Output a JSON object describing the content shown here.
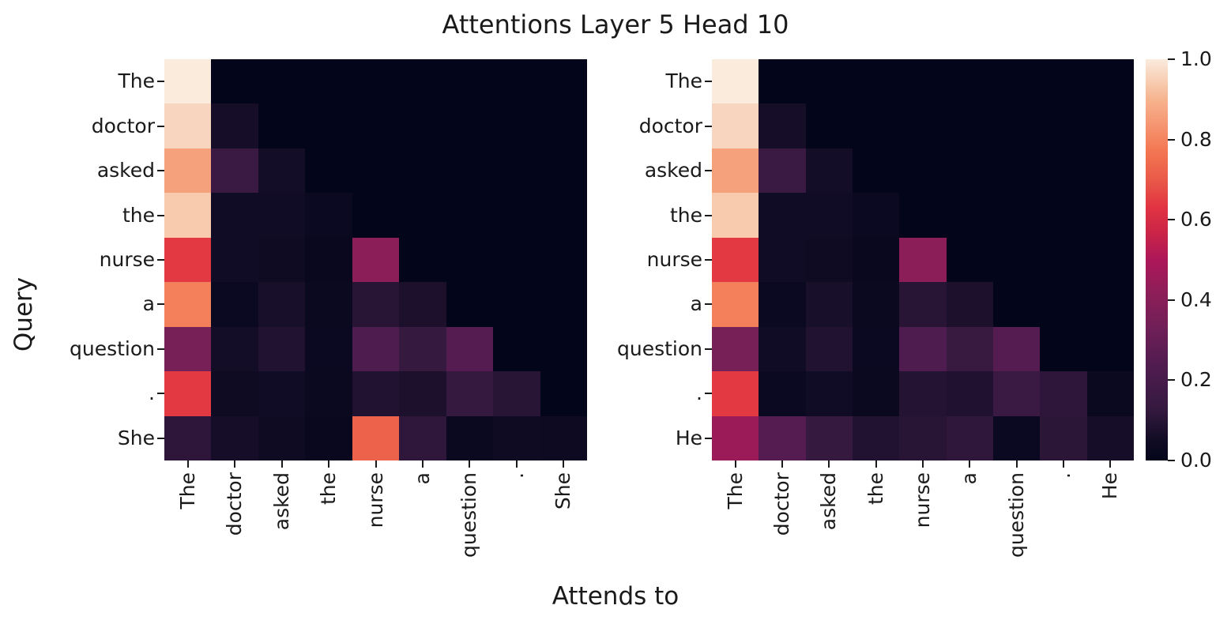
{
  "figure": {
    "title": "Attentions Layer 5 Head 10",
    "xlabel": "Attends to",
    "ylabel": "Query"
  },
  "chart_data": {
    "type": "heatmap",
    "title": "Attentions Layer 5 Head 10",
    "xlabel": "Attends to",
    "ylabel": "Query",
    "vmin": 0.0,
    "vmax": 1.0,
    "grid": false,
    "colormap": "rocket",
    "colormap_stops": [
      [
        0.0,
        "#03051a"
      ],
      [
        0.05,
        "#110c25"
      ],
      [
        0.125,
        "#34193e"
      ],
      [
        0.2,
        "#461b4a"
      ],
      [
        0.25,
        "#541c50"
      ],
      [
        0.33,
        "#701f57"
      ],
      [
        0.42,
        "#8e1e58"
      ],
      [
        0.5,
        "#ad1759"
      ],
      [
        0.565,
        "#c92447"
      ],
      [
        0.63,
        "#e13342"
      ],
      [
        0.7,
        "#ea5a49"
      ],
      [
        0.77,
        "#f37651"
      ],
      [
        0.9,
        "#f6b48f"
      ],
      [
        1.0,
        "#faebdd"
      ]
    ],
    "colorbar": {
      "position": "right",
      "tick_labels": [
        "1.0",
        "0.8",
        "0.6",
        "0.4",
        "0.2",
        "0.0"
      ],
      "tick_values": [
        1.0,
        0.8,
        0.6,
        0.4,
        0.2,
        0.0
      ]
    },
    "x_tick_rotation": 90,
    "subplots": [
      {
        "name": "she-sentence",
        "x_tokens": [
          "The",
          "doctor",
          "asked",
          "the",
          "nurse",
          "a",
          "question",
          ".",
          "She"
        ],
        "y_tokens": [
          "The",
          "doctor",
          "asked",
          "the",
          "nurse",
          "a",
          "question",
          ".",
          "She"
        ],
        "values": [
          [
            1.0,
            0.0,
            0.0,
            0.0,
            0.0,
            0.0,
            0.0,
            0.0,
            0.0
          ],
          [
            0.96,
            0.06,
            0.0,
            0.0,
            0.0,
            0.0,
            0.0,
            0.0,
            0.0
          ],
          [
            0.86,
            0.15,
            0.055,
            0.0,
            0.0,
            0.0,
            0.0,
            0.0,
            0.0
          ],
          [
            0.94,
            0.05,
            0.05,
            0.03,
            0.0,
            0.0,
            0.0,
            0.0,
            0.0
          ],
          [
            0.64,
            0.05,
            0.04,
            0.02,
            0.41,
            0.0,
            0.0,
            0.0,
            0.0
          ],
          [
            0.79,
            0.03,
            0.065,
            0.025,
            0.1,
            0.075,
            0.0,
            0.0,
            0.0
          ],
          [
            0.35,
            0.055,
            0.085,
            0.03,
            0.23,
            0.13,
            0.25,
            0.0,
            0.0
          ],
          [
            0.64,
            0.04,
            0.05,
            0.025,
            0.085,
            0.075,
            0.13,
            0.1,
            0.0
          ],
          [
            0.11,
            0.06,
            0.04,
            0.02,
            0.72,
            0.115,
            0.025,
            0.04,
            0.035
          ]
        ]
      },
      {
        "name": "he-sentence",
        "x_tokens": [
          "The",
          "doctor",
          "asked",
          "the",
          "nurse",
          "a",
          "question",
          ".",
          "He"
        ],
        "y_tokens": [
          "The",
          "doctor",
          "asked",
          "the",
          "nurse",
          "a",
          "question",
          ".",
          "He"
        ],
        "values": [
          [
            1.0,
            0.0,
            0.0,
            0.0,
            0.0,
            0.0,
            0.0,
            0.0,
            0.0
          ],
          [
            0.96,
            0.06,
            0.0,
            0.0,
            0.0,
            0.0,
            0.0,
            0.0,
            0.0
          ],
          [
            0.86,
            0.15,
            0.055,
            0.0,
            0.0,
            0.0,
            0.0,
            0.0,
            0.0
          ],
          [
            0.94,
            0.05,
            0.05,
            0.03,
            0.0,
            0.0,
            0.0,
            0.0,
            0.0
          ],
          [
            0.64,
            0.05,
            0.04,
            0.02,
            0.41,
            0.0,
            0.0,
            0.0,
            0.0
          ],
          [
            0.79,
            0.03,
            0.065,
            0.025,
            0.1,
            0.075,
            0.0,
            0.0,
            0.0
          ],
          [
            0.35,
            0.05,
            0.085,
            0.03,
            0.23,
            0.14,
            0.25,
            0.0,
            0.0
          ],
          [
            0.64,
            0.03,
            0.05,
            0.025,
            0.09,
            0.08,
            0.15,
            0.11,
            0.025
          ],
          [
            0.45,
            0.25,
            0.13,
            0.085,
            0.1,
            0.115,
            0.03,
            0.105,
            0.06
          ]
        ]
      }
    ]
  }
}
